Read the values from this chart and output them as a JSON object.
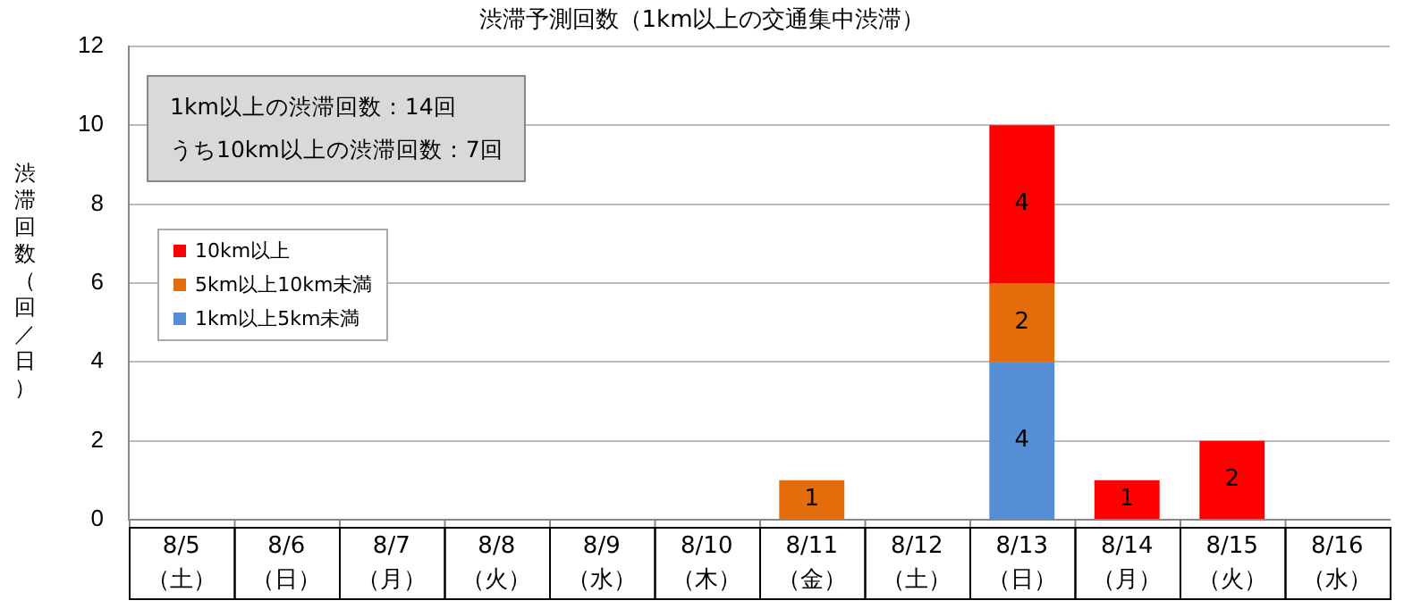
{
  "chart_data": {
    "type": "bar",
    "stacked": true,
    "title": "渋滞予測回数（1km以上の交通集中渋滞）",
    "ylabel": "渋滞回数（回／日）",
    "categories": [
      "8/5（土）",
      "8/6（日）",
      "8/7（月）",
      "8/8（火）",
      "8/9（水）",
      "8/10（木）",
      "8/11（金）",
      "8/12（土）",
      "8/13（日）",
      "8/14（月）",
      "8/15（火）",
      "8/16（水）"
    ],
    "series": [
      {
        "name": "1km以上5km未満",
        "color": "#558ed5",
        "values": [
          null,
          null,
          null,
          null,
          null,
          null,
          null,
          null,
          4,
          null,
          null,
          null
        ]
      },
      {
        "name": "5km以上10km未満",
        "color": "#e46c0a",
        "values": [
          null,
          null,
          null,
          null,
          null,
          null,
          1,
          null,
          2,
          null,
          null,
          null
        ]
      },
      {
        "name": "10km以上",
        "color": "#ff0000",
        "values": [
          null,
          null,
          null,
          null,
          null,
          null,
          null,
          null,
          4,
          1,
          2,
          null
        ]
      }
    ],
    "ylim": [
      0,
      12
    ],
    "yticks": [
      0,
      2,
      4,
      6,
      8,
      10,
      12
    ],
    "grid": "y",
    "legend": "left",
    "data_labels": true,
    "annotations": [
      "1km以上の渋滞回数：14回",
      "うち10km以上の渋滞回数：7回"
    ]
  }
}
